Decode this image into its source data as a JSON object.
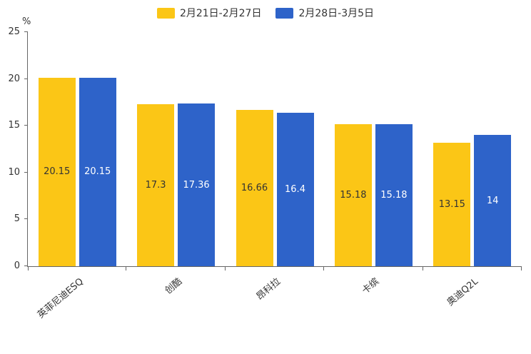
{
  "chart_data": {
    "type": "bar",
    "categories": [
      "英菲尼迪ESQ",
      "创酷",
      "昂科拉",
      "卡缤",
      "奥迪Q2L"
    ],
    "series": [
      {
        "name": "2月21日-2月27日",
        "color": "#FBC616",
        "label_color": "#333333",
        "values": [
          20.15,
          17.3,
          16.66,
          15.18,
          13.15
        ]
      },
      {
        "name": "2月28日-3月5日",
        "color": "#2E63C9",
        "label_color": "#ffffff",
        "values": [
          20.15,
          17.36,
          16.4,
          15.18,
          14
        ]
      }
    ],
    "title": "",
    "xlabel": "",
    "ylabel": "%",
    "ylim": [
      0,
      25
    ],
    "yticks": [
      0,
      5,
      10,
      15,
      20,
      25
    ],
    "legend_position": "top",
    "grid": false
  }
}
